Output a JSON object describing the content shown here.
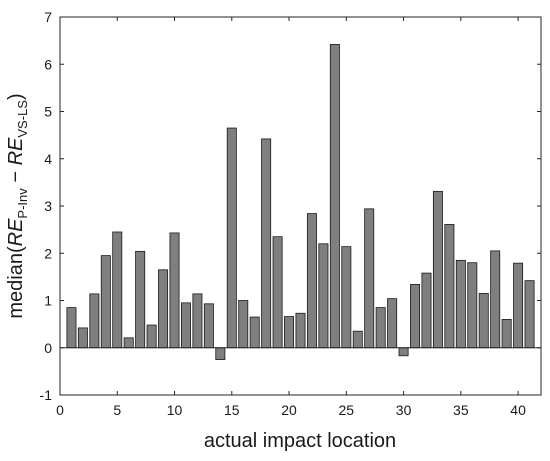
{
  "chart_data": {
    "type": "bar",
    "xlabel": "actual impact location",
    "ylabel": {
      "prefix": "median(",
      "term1": "RE",
      "sub1": "P-Inv",
      "minus": " − ",
      "term2": "RE",
      "sub2": "VS-LS",
      "suffix": ")"
    },
    "xlim": [
      0,
      42
    ],
    "ylim": [
      -1,
      7
    ],
    "xticks": [
      0,
      5,
      10,
      15,
      20,
      25,
      30,
      35,
      40
    ],
    "yticks": [
      -1,
      0,
      1,
      2,
      3,
      4,
      5,
      6,
      7
    ],
    "grid": false,
    "bar_color": "#7f7f7f",
    "edge_color": "#1a1a1a",
    "x": [
      1,
      2,
      3,
      4,
      5,
      6,
      7,
      8,
      9,
      10,
      11,
      12,
      13,
      14,
      15,
      16,
      17,
      18,
      19,
      20,
      21,
      22,
      23,
      24,
      25,
      26,
      27,
      28,
      29,
      30,
      31,
      32,
      33,
      34,
      35,
      36,
      37,
      38,
      39,
      40,
      41
    ],
    "values": [
      0.85,
      0.42,
      1.14,
      1.95,
      2.45,
      0.21,
      2.04,
      0.48,
      1.65,
      2.43,
      0.95,
      1.14,
      0.93,
      -0.25,
      4.65,
      1.0,
      0.65,
      4.42,
      2.35,
      0.66,
      0.73,
      2.84,
      2.2,
      6.42,
      2.14,
      0.35,
      2.94,
      0.85,
      1.04,
      -0.17,
      1.34,
      1.58,
      3.31,
      2.61,
      1.85,
      1.8,
      1.15,
      2.05,
      0.6,
      1.79,
      1.42
    ]
  }
}
